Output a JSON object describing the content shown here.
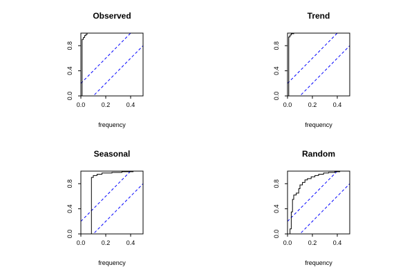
{
  "chart_data": [
    {
      "type": "line",
      "title": "Observed",
      "xlabel": "frequency",
      "ylabel": "",
      "xlim": [
        0,
        0.5
      ],
      "ylim": [
        0,
        1
      ],
      "xticks": [
        0.0,
        0.2,
        0.4
      ],
      "xtick_labels": [
        "0.0",
        "0.2",
        "0.4"
      ],
      "yticks": [
        0.0,
        0.4,
        0.8
      ],
      "ytick_labels": [
        "0.0",
        "0.4",
        "0.8"
      ],
      "series": [
        {
          "points": [
            [
              0,
              0
            ],
            [
              0.01,
              0
            ],
            [
              0.01,
              0.9
            ],
            [
              0.02,
              0.9
            ],
            [
              0.02,
              0.93
            ],
            [
              0.03,
              0.93
            ],
            [
              0.03,
              0.96
            ],
            [
              0.04,
              0.96
            ],
            [
              0.04,
              0.98
            ],
            [
              0.05,
              0.98
            ],
            [
              0.05,
              1.0
            ],
            [
              0.5,
              1.0
            ]
          ]
        }
      ],
      "confidence_band": {
        "offset": 0.2,
        "color": "#0000ff"
      }
    },
    {
      "type": "line",
      "title": "Trend",
      "xlabel": "frequency",
      "ylabel": "",
      "xlim": [
        0,
        0.5
      ],
      "ylim": [
        0,
        1
      ],
      "xticks": [
        0.0,
        0.2,
        0.4
      ],
      "xtick_labels": [
        "0.0",
        "0.2",
        "0.4"
      ],
      "yticks": [
        0.0,
        0.4,
        0.8
      ],
      "ytick_labels": [
        "0.0",
        "0.4",
        "0.8"
      ],
      "series": [
        {
          "points": [
            [
              0,
              0
            ],
            [
              0.01,
              0
            ],
            [
              0.01,
              0.94
            ],
            [
              0.02,
              0.94
            ],
            [
              0.02,
              0.97
            ],
            [
              0.03,
              0.97
            ],
            [
              0.03,
              0.99
            ],
            [
              0.05,
              0.99
            ],
            [
              0.05,
              1.0
            ],
            [
              0.5,
              1.0
            ]
          ]
        }
      ],
      "confidence_band": {
        "offset": 0.2,
        "color": "#0000ff"
      }
    },
    {
      "type": "line",
      "title": "Seasonal",
      "xlabel": "frequency",
      "ylabel": "",
      "xlim": [
        0,
        0.5
      ],
      "ylim": [
        0,
        1
      ],
      "xticks": [
        0.0,
        0.2,
        0.4
      ],
      "xtick_labels": [
        "0.0",
        "0.2",
        "0.4"
      ],
      "yticks": [
        0.0,
        0.4,
        0.8
      ],
      "ytick_labels": [
        "0.0",
        "0.4",
        "0.8"
      ],
      "series": [
        {
          "points": [
            [
              0,
              0
            ],
            [
              0.083,
              0
            ],
            [
              0.083,
              0.0
            ],
            [
              0.085,
              0.0
            ],
            [
              0.085,
              0.9
            ],
            [
              0.1,
              0.9
            ],
            [
              0.1,
              0.93
            ],
            [
              0.13,
              0.93
            ],
            [
              0.13,
              0.95
            ],
            [
              0.17,
              0.95
            ],
            [
              0.17,
              0.97
            ],
            [
              0.25,
              0.97
            ],
            [
              0.25,
              0.98
            ],
            [
              0.33,
              0.98
            ],
            [
              0.33,
              0.99
            ],
            [
              0.42,
              0.99
            ],
            [
              0.42,
              1.0
            ],
            [
              0.5,
              1.0
            ]
          ]
        }
      ],
      "confidence_band": {
        "offset": 0.2,
        "color": "#0000ff"
      }
    },
    {
      "type": "line",
      "title": "Random",
      "xlabel": "frequency",
      "ylabel": "",
      "xlim": [
        0,
        0.5
      ],
      "ylim": [
        0,
        1
      ],
      "xticks": [
        0.0,
        0.2,
        0.4
      ],
      "xtick_labels": [
        "0.0",
        "0.2",
        "0.4"
      ],
      "yticks": [
        0.0,
        0.4,
        0.8
      ],
      "ytick_labels": [
        "0.0",
        "0.4",
        "0.8"
      ],
      "series": [
        {
          "points": [
            [
              0,
              0
            ],
            [
              0.02,
              0
            ],
            [
              0.02,
              0.08
            ],
            [
              0.03,
              0.08
            ],
            [
              0.03,
              0.35
            ],
            [
              0.04,
              0.35
            ],
            [
              0.04,
              0.55
            ],
            [
              0.05,
              0.55
            ],
            [
              0.05,
              0.62
            ],
            [
              0.07,
              0.62
            ],
            [
              0.07,
              0.65
            ],
            [
              0.09,
              0.65
            ],
            [
              0.09,
              0.72
            ],
            [
              0.1,
              0.72
            ],
            [
              0.1,
              0.78
            ],
            [
              0.12,
              0.78
            ],
            [
              0.12,
              0.82
            ],
            [
              0.14,
              0.82
            ],
            [
              0.14,
              0.86
            ],
            [
              0.16,
              0.86
            ],
            [
              0.16,
              0.88
            ],
            [
              0.19,
              0.88
            ],
            [
              0.19,
              0.91
            ],
            [
              0.22,
              0.91
            ],
            [
              0.22,
              0.93
            ],
            [
              0.25,
              0.93
            ],
            [
              0.25,
              0.95
            ],
            [
              0.29,
              0.95
            ],
            [
              0.29,
              0.97
            ],
            [
              0.33,
              0.97
            ],
            [
              0.33,
              0.98
            ],
            [
              0.38,
              0.98
            ],
            [
              0.38,
              0.99
            ],
            [
              0.42,
              0.99
            ],
            [
              0.42,
              1.0
            ],
            [
              0.5,
              1.0
            ]
          ]
        }
      ],
      "confidence_band": {
        "offset": 0.2,
        "color": "#0000ff"
      }
    }
  ]
}
